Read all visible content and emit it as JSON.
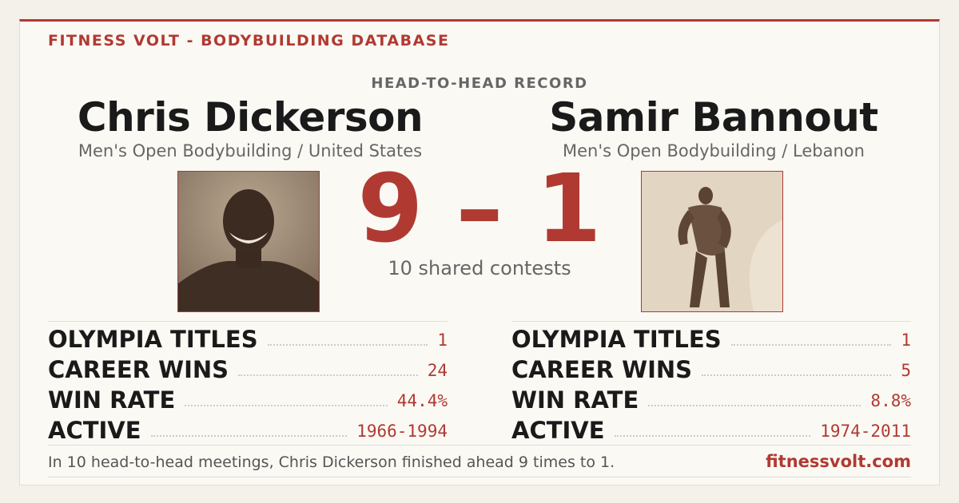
{
  "header": {
    "brand": "FITNESS VOLT - BODYBUILDING DATABASE"
  },
  "record_label": "HEAD-TO-HEAD RECORD",
  "score": "9 – 1",
  "shared": "10 shared contests",
  "athletes": [
    {
      "name": "Chris Dickerson",
      "division": "Men's Open Bodybuilding / United States",
      "stats": [
        {
          "label": "OLYMPIA TITLES",
          "value": "1"
        },
        {
          "label": "CAREER WINS",
          "value": "24"
        },
        {
          "label": "WIN RATE",
          "value": "44.4%"
        },
        {
          "label": "ACTIVE",
          "value": "1966-1994"
        }
      ]
    },
    {
      "name": "Samir Bannout",
      "division": "Men's Open Bodybuilding / Lebanon",
      "stats": [
        {
          "label": "OLYMPIA TITLES",
          "value": "1"
        },
        {
          "label": "CAREER WINS",
          "value": "5"
        },
        {
          "label": "WIN RATE",
          "value": "8.8%"
        },
        {
          "label": "ACTIVE",
          "value": "1974-2011"
        }
      ]
    }
  ],
  "footer": {
    "summary": "In 10 head-to-head meetings, Chris Dickerson finished ahead 9 times to 1.",
    "site": "fitnessvolt.com"
  }
}
